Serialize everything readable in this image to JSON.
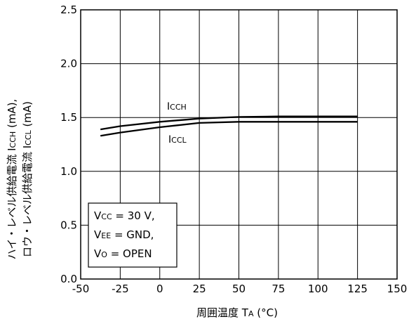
{
  "chart_data": {
    "type": "line",
    "title": "",
    "xlabel": "周囲温度 TA (°C)",
    "ylabel": [
      "ハイ・レベル供給電流 ICCH (mA),",
      "ロウ・レベル供給電流 ICCL (mA)"
    ],
    "xlim": [
      -50,
      150
    ],
    "ylim": [
      0,
      2.5
    ],
    "x_ticks": [
      -50,
      -25,
      0,
      25,
      50,
      75,
      100,
      125,
      150
    ],
    "y_ticks": [
      0.0,
      0.5,
      1.0,
      1.5,
      2.0,
      2.5
    ],
    "x_tick_labels": [
      "-50",
      "-25",
      "0",
      "25",
      "50",
      "75",
      "100",
      "125",
      "150"
    ],
    "y_tick_labels": [
      "0.0",
      "0.5",
      "1.0",
      "1.5",
      "2.0",
      "2.5"
    ],
    "grid": true,
    "series": [
      {
        "name": "ICCH",
        "x": [
          -37.5,
          -25,
          0,
          25,
          50,
          75,
          100,
          125
        ],
        "y": [
          1.39,
          1.42,
          1.46,
          1.49,
          1.505,
          1.51,
          1.51,
          1.51
        ]
      },
      {
        "name": "ICCL",
        "x": [
          -37.5,
          -25,
          0,
          25,
          50,
          75,
          100,
          125
        ],
        "y": [
          1.33,
          1.36,
          1.41,
          1.45,
          1.46,
          1.46,
          1.46,
          1.46
        ]
      }
    ],
    "conditions": [
      "VCC = 30 V,",
      "VEE = GND,",
      "VO = OPEN"
    ]
  }
}
